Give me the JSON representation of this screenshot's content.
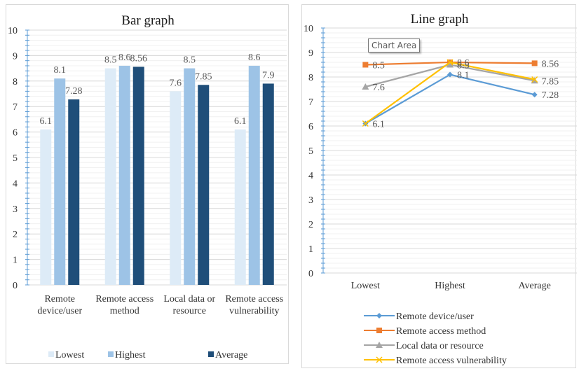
{
  "chart_data": [
    {
      "type": "bar",
      "title": "Bar graph",
      "categories": [
        [
          "Remote",
          "device/user"
        ],
        [
          "Remote access",
          "method"
        ],
        [
          "Local data or",
          "resource"
        ],
        [
          "Remote access",
          "vulnerability"
        ]
      ],
      "series": [
        {
          "name": "Lowest",
          "color": "#ddebf7",
          "values": [
            6.1,
            8.5,
            7.6,
            6.1
          ]
        },
        {
          "name": "Highest",
          "color": "#9dc3e6",
          "values": [
            8.1,
            8.6,
            8.5,
            8.6
          ]
        },
        {
          "name": "Average",
          "color": "#1f4e79",
          "values": [
            7.28,
            8.56,
            7.85,
            7.9
          ]
        }
      ],
      "ylim": [
        0,
        10
      ],
      "yticks": [
        0,
        1,
        2,
        3,
        4,
        5,
        6,
        7,
        8,
        9,
        10
      ],
      "xlabel": "",
      "ylabel": "",
      "grid": true,
      "legend": "bottom"
    },
    {
      "type": "line",
      "title": "Line graph",
      "categories": [
        "Lowest",
        "Highest",
        "Average"
      ],
      "series": [
        {
          "name": "Remote device/user",
          "color": "#5b9bd5",
          "marker": "diamond",
          "values": [
            6.1,
            8.1,
            7.28
          ]
        },
        {
          "name": "Remote access method",
          "color": "#ed7d31",
          "marker": "square",
          "values": [
            8.5,
            8.6,
            8.56
          ]
        },
        {
          "name": "Local data or resource",
          "color": "#a5a5a5",
          "marker": "triangle",
          "values": [
            7.6,
            8.5,
            7.85
          ]
        },
        {
          "name": "Remote access vulnerability",
          "color": "#ffc000",
          "marker": "x",
          "values": [
            6.1,
            8.6,
            7.9
          ]
        }
      ],
      "data_labels": [
        {
          "series": 1,
          "point": 0,
          "text": "8.5"
        },
        {
          "series": 2,
          "point": 0,
          "text": "7.6"
        },
        {
          "series": 0,
          "point": 0,
          "text": "6.1"
        },
        {
          "series": 1,
          "point": 1,
          "text": "8.6"
        },
        {
          "series": 2,
          "point": 1,
          "text": "8.5"
        },
        {
          "series": 0,
          "point": 1,
          "text": "8.1"
        },
        {
          "series": 1,
          "point": 2,
          "text": "8.56"
        },
        {
          "series": 2,
          "point": 2,
          "text": "7.85"
        },
        {
          "series": 0,
          "point": 2,
          "text": "7.28"
        }
      ],
      "ylim": [
        0,
        10
      ],
      "yticks": [
        0,
        1,
        2,
        3,
        4,
        5,
        6,
        7,
        8,
        9,
        10
      ],
      "xlabel": "",
      "ylabel": "",
      "grid": true,
      "legend": "bottom",
      "tooltip": "Chart Area"
    }
  ]
}
